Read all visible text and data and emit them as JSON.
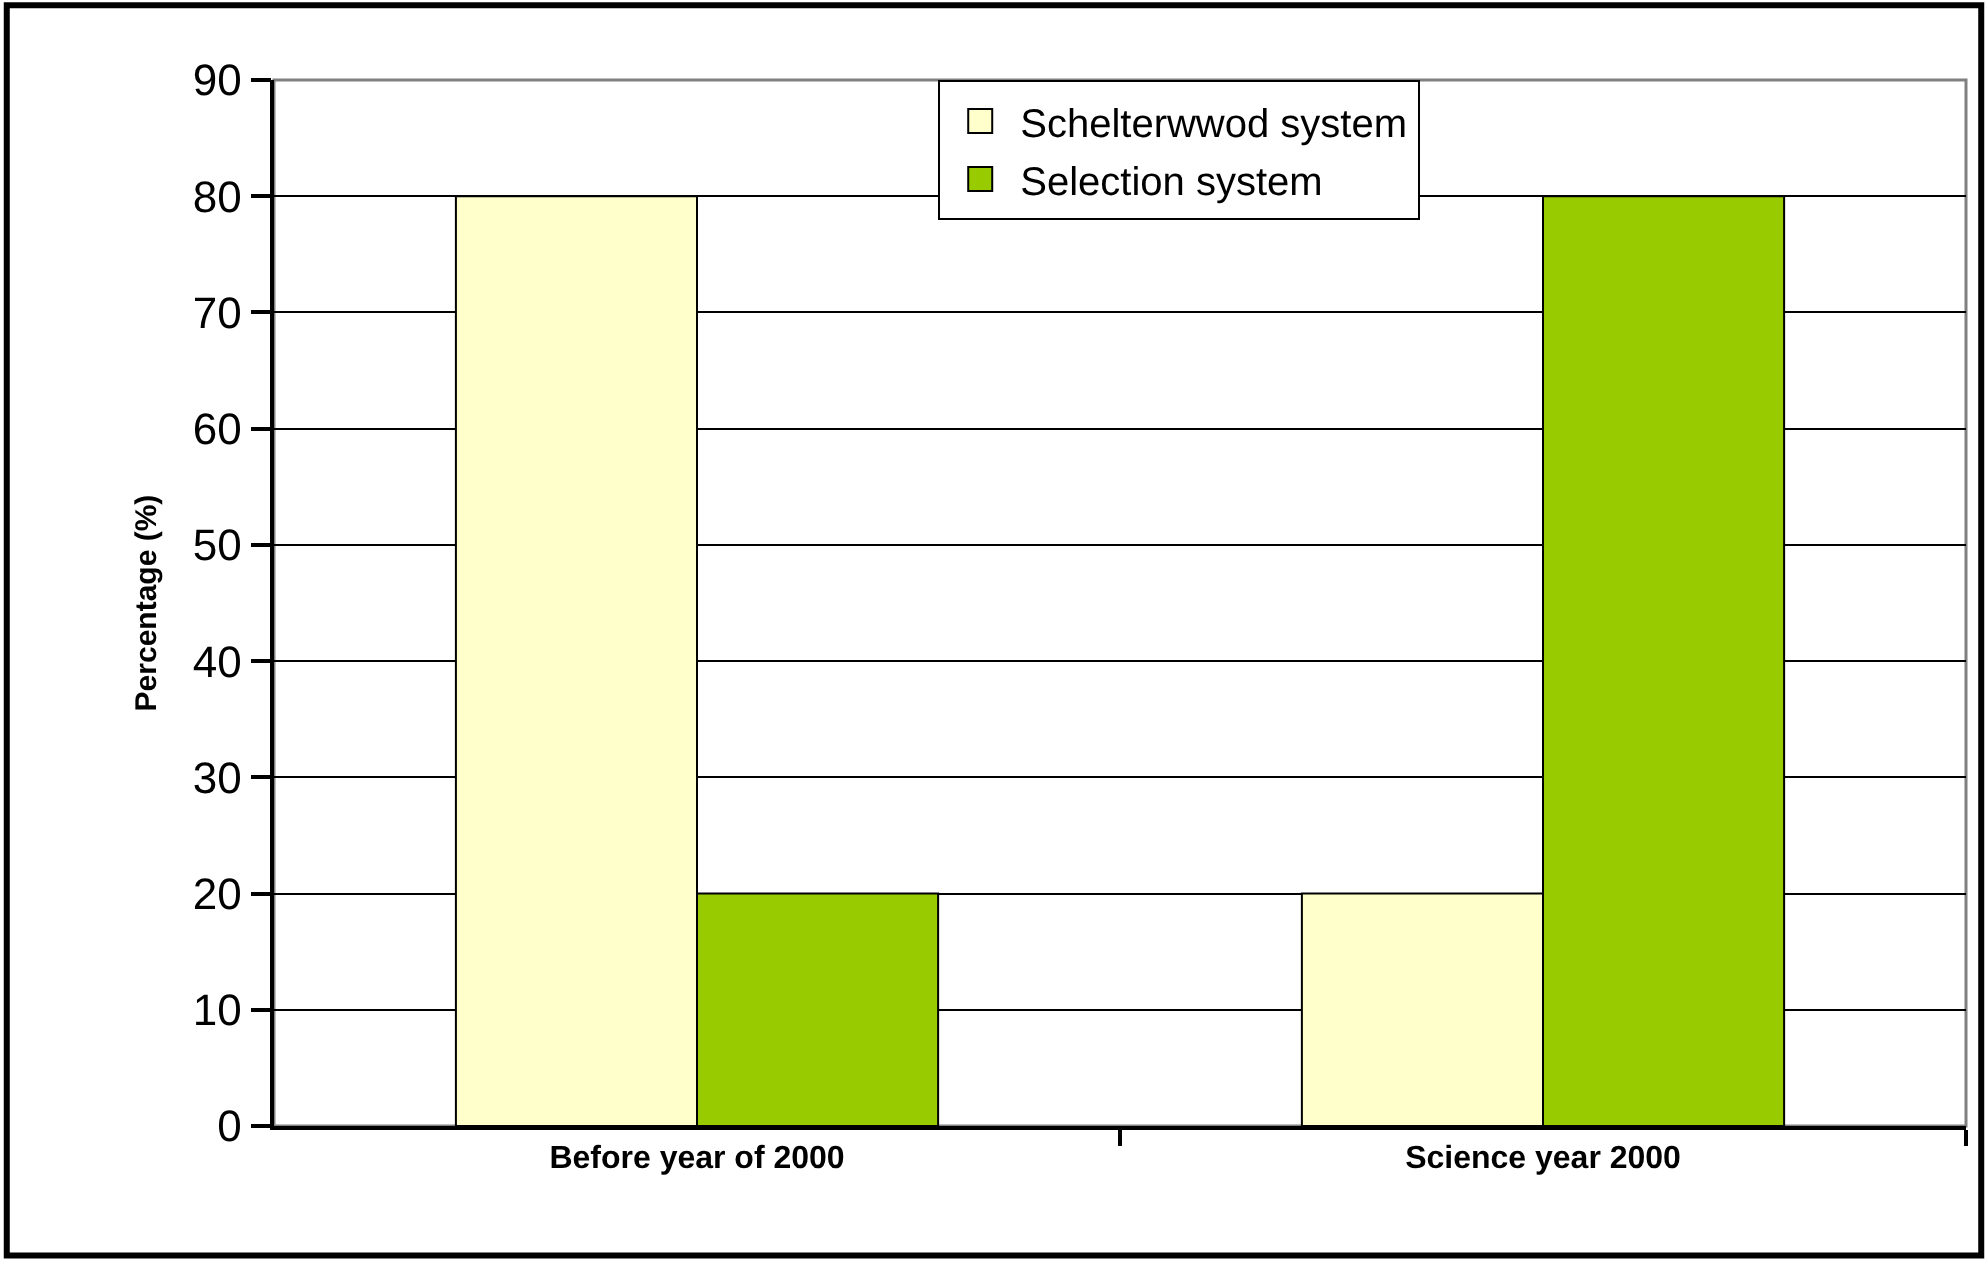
{
  "chart_data": {
    "type": "bar",
    "ylabel": "Percentage (%)",
    "categories": [
      "Before year of 2000",
      "Science year 2000"
    ],
    "series": [
      {
        "name": "Schelterwwod system",
        "color": "#ffffcc",
        "values": [
          80,
          20
        ]
      },
      {
        "name": "Selection system",
        "color": "#99cc00",
        "values": [
          20,
          80
        ]
      }
    ],
    "ylim": [
      0,
      90
    ],
    "yticks": [
      0,
      10,
      20,
      30,
      40,
      50,
      60,
      70,
      80,
      90
    ],
    "grid": "y",
    "legend": "top"
  }
}
